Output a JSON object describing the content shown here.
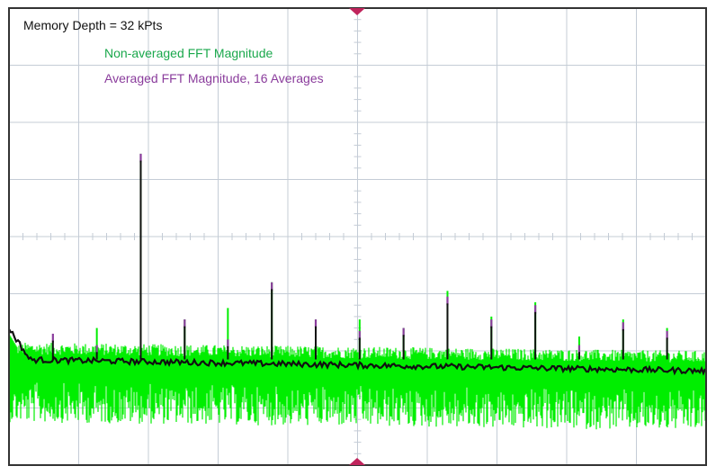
{
  "chart_data": {
    "type": "line",
    "title": "",
    "xlabel": "",
    "ylabel": "",
    "grid": true,
    "divisions": {
      "x": 10,
      "y": 8
    },
    "annotations": {
      "memory_depth": "Memory Depth = 32 kPts"
    },
    "legend": {
      "placement": "top-left",
      "entries": [
        {
          "name": "Non-averaged FFT Magnitude",
          "color": "#1aa84c"
        },
        {
          "name": "Averaged FFT Magnitude, 16 Averages",
          "color": "#8a3c9c"
        }
      ]
    },
    "xlim": [
      0,
      10
    ],
    "ylim": [
      0,
      8
    ],
    "series": [
      {
        "name": "Non-averaged FFT Magnitude",
        "color": "#00ee00",
        "noise_floor": {
          "start": 1.85,
          "end": 1.7,
          "upper_extent": 0.3,
          "lower_extent": 1.1
        },
        "spikes": [
          {
            "x": 1.26,
            "y": 2.4
          },
          {
            "x": 1.89,
            "y": 5.45
          },
          {
            "x": 2.52,
            "y": 2.55
          },
          {
            "x": 3.14,
            "y": 2.75
          },
          {
            "x": 3.77,
            "y": 3.2
          },
          {
            "x": 4.4,
            "y": 2.55
          },
          {
            "x": 5.03,
            "y": 2.55
          },
          {
            "x": 5.66,
            "y": 2.4
          },
          {
            "x": 6.29,
            "y": 3.05
          },
          {
            "x": 6.92,
            "y": 2.6
          },
          {
            "x": 7.55,
            "y": 2.85
          },
          {
            "x": 8.18,
            "y": 2.25
          },
          {
            "x": 8.81,
            "y": 2.55
          },
          {
            "x": 9.44,
            "y": 2.4
          }
        ]
      },
      {
        "name": "Averaged FFT Magnitude, 16 Averages",
        "color": "#111111",
        "start_level": 2.4,
        "baseline": {
          "start": 1.85,
          "end": 1.65
        },
        "spikes": [
          {
            "x": 0.63,
            "y": 2.3
          },
          {
            "x": 1.26,
            "y": 2.1
          },
          {
            "x": 1.89,
            "y": 5.45
          },
          {
            "x": 2.52,
            "y": 2.55
          },
          {
            "x": 3.14,
            "y": 2.2
          },
          {
            "x": 3.77,
            "y": 3.2
          },
          {
            "x": 4.4,
            "y": 2.55
          },
          {
            "x": 5.03,
            "y": 2.35
          },
          {
            "x": 5.66,
            "y": 2.4
          },
          {
            "x": 6.29,
            "y": 2.95
          },
          {
            "x": 6.92,
            "y": 2.55
          },
          {
            "x": 7.55,
            "y": 2.8
          },
          {
            "x": 8.18,
            "y": 2.1
          },
          {
            "x": 8.81,
            "y": 2.5
          },
          {
            "x": 9.44,
            "y": 2.35
          }
        ]
      }
    ],
    "colors": {
      "grid": "#c4ccd6",
      "frame": "#333333",
      "trigger_marker": "#c0245c",
      "purple_peaks": "#8a3c9c"
    }
  }
}
